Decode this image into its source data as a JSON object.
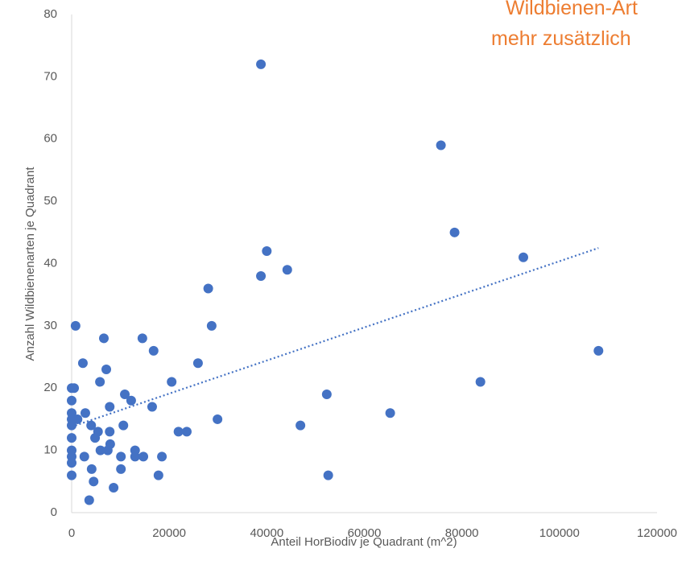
{
  "chart_data": {
    "type": "scatter",
    "annotations": [
      "Wildbienen-Art",
      "mehr zusätzlich"
    ],
    "xlabel": "Anteil HorBiodiv je Quadrant (m^2)",
    "ylabel": "Anzahl Wildbienenarten je Quadrant",
    "xlim": [
      0,
      120000
    ],
    "ylim": [
      0,
      80
    ],
    "xticks": [
      0,
      20000,
      40000,
      60000,
      80000,
      100000,
      120000
    ],
    "yticks": [
      0,
      10,
      20,
      30,
      40,
      50,
      60,
      70,
      80
    ],
    "grid": false,
    "series": [
      {
        "name": "Wildbienenarten",
        "color": "#4472C4",
        "x": [
          38800,
          75700,
          78500,
          92600,
          108000,
          83800,
          65300,
          52300,
          52600,
          46900,
          40000,
          44200,
          38800,
          28000,
          28700,
          25900,
          29900,
          23600,
          21900,
          20500,
          18500,
          17800,
          14500,
          16800,
          16500,
          12200,
          10900,
          10600,
          13000,
          13000,
          14700,
          10100,
          10100,
          8600,
          6600,
          7100,
          5800,
          7800,
          7800,
          7900,
          7400,
          5900,
          5400,
          4800,
          4000,
          2800,
          2300,
          800,
          1200,
          2600,
          4100,
          4500,
          3600,
          0,
          500,
          0,
          0,
          0,
          0,
          0,
          0,
          0,
          0,
          0
        ],
        "values": [
          72,
          59,
          45,
          41,
          26,
          21,
          16,
          19,
          6,
          14,
          42,
          39,
          38,
          36,
          30,
          24,
          15,
          13,
          13,
          21,
          9,
          6,
          28,
          26,
          17,
          18,
          19,
          14,
          10,
          9,
          9,
          9,
          7,
          4,
          28,
          23,
          21,
          17,
          13,
          11,
          10,
          10,
          13,
          12,
          14,
          16,
          24,
          30,
          15,
          9,
          7,
          5,
          2,
          20,
          20,
          18,
          16,
          15,
          14,
          12,
          10,
          9,
          8,
          6
        ]
      }
    ],
    "trendline": {
      "color": "#4472C4",
      "x": [
        0,
        108000
      ],
      "values": [
        13.8,
        42.5
      ]
    }
  }
}
